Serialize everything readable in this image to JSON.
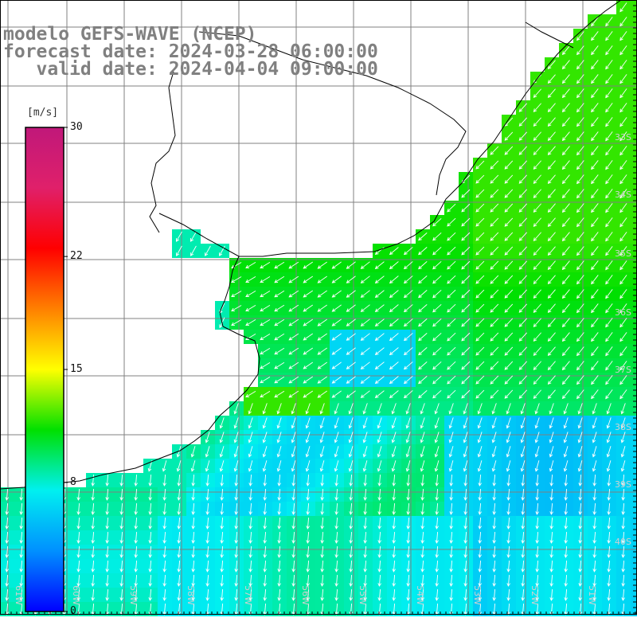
{
  "title": {
    "line1": "modelo GEFS-WAVE (NCEP)",
    "line2": "forecast date: 2024-03-28 06:00:00",
    "line3": "   valid date: 2024-04-04 09:00:00"
  },
  "colorbar": {
    "unit": "[m/s]",
    "min": 0,
    "max": 30,
    "ticks": [
      {
        "value": 30,
        "label": "30"
      },
      {
        "value": 22,
        "label": "22"
      },
      {
        "value": 15,
        "label": "15"
      },
      {
        "value": 8,
        "label": "8"
      },
      {
        "value": 0,
        "label": "0"
      }
    ],
    "colors": [
      "#0000ff",
      "#0090ff",
      "#00f0f0",
      "#00e000",
      "#ffff00",
      "#ff8000",
      "#ff0000",
      "#e0206a",
      "#c0187a"
    ]
  },
  "map": {
    "lat_labels": [
      "33S",
      "34S",
      "35S",
      "36S",
      "37S",
      "38S",
      "39S",
      "40S"
    ],
    "lon_labels": [
      "61W",
      "60W",
      "59W",
      "58W",
      "57W",
      "56W",
      "55W",
      "54W",
      "53W",
      "52W",
      "51W"
    ],
    "arrow_color": "#ffffff",
    "coast_color": "#000000",
    "grid_color": "#808080"
  }
}
